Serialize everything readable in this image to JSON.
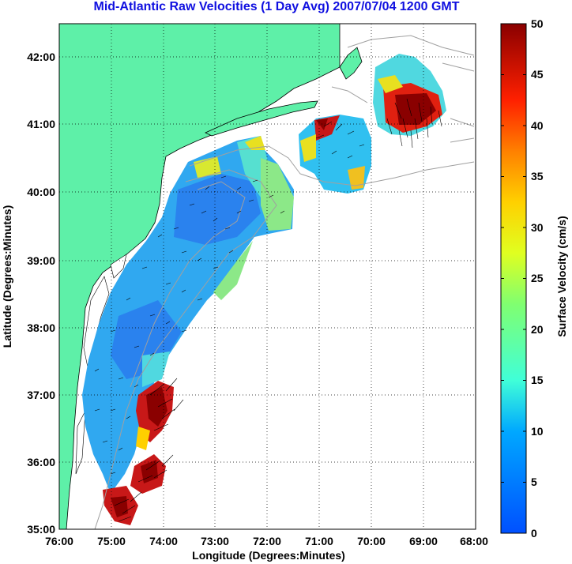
{
  "title": "Mid-Atlantic Raw Velocities (1 Day Avg) 2007/07/04 1200 GMT",
  "axes": {
    "xlabel": "Longitude (Degrees:Minutes)",
    "ylabel": "Latitude (Degrees:Minutes)",
    "x_ticks": [
      "76:00",
      "75:00",
      "74:00",
      "73:00",
      "72:00",
      "71:00",
      "70:00",
      "69:00",
      "68:00"
    ],
    "y_ticks": [
      "35:00",
      "36:00",
      "37:00",
      "38:00",
      "39:00",
      "40:00",
      "41:00",
      "42:00"
    ],
    "grid": "dotted"
  },
  "colorbar": {
    "label": "Surface Velocity (cm/s)",
    "ticks": [
      "0",
      "5",
      "10",
      "15",
      "20",
      "25",
      "30",
      "35",
      "40",
      "45",
      "50"
    ],
    "range": [
      0,
      50
    ]
  },
  "colors": {
    "land": "#5ef0a8",
    "bathymetry": "#a0a0a0",
    "arrows": "#000000",
    "title": "#1010e0"
  }
}
